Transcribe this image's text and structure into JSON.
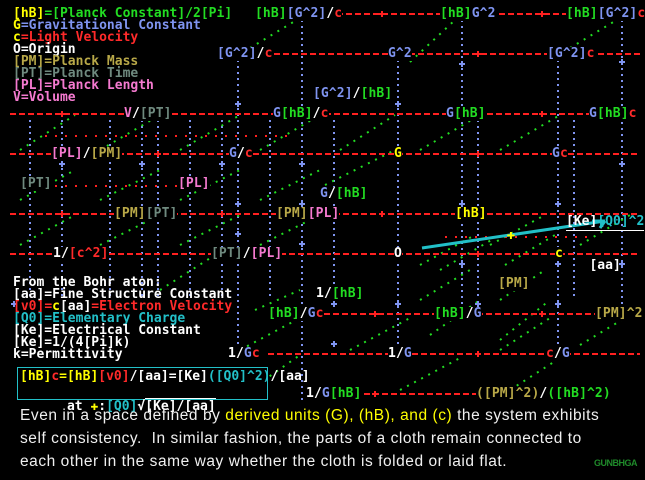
{
  "colors": {
    "hB": "#22dd22",
    "G": "#7f94f0",
    "c": "#ff2a2a",
    "O": "#ffffff",
    "PM": "#b8a848",
    "PT": "#6f8a7f",
    "PL": "#f57ad0",
    "V": "#f57ad0",
    "yellow": "#ffff00",
    "cyan": "#22c0c8",
    "white": "#ffffff",
    "grid_h": "#ff2020",
    "grid_v": "#7f94f0",
    "diag": "#22dd22"
  },
  "legend": [
    [
      [
        "[hB]",
        "#ffff00"
      ],
      [
        "=[Planck Constant]/2[Pi]",
        "#22dd22"
      ]
    ],
    [
      [
        "G",
        "#ffff00"
      ],
      [
        "=Gravitational Constant",
        "#7f94f0"
      ]
    ],
    [
      [
        "c",
        "#ffff00"
      ],
      [
        "=Light Velocity",
        "#ff2a2a"
      ]
    ],
    [
      [
        "O=Origin",
        "#ffffff"
      ]
    ],
    [
      [
        "[PM]=Planck Mass",
        "#b8a848"
      ]
    ],
    [
      [
        "[PT]=Planck Time",
        "#6f8a7f"
      ]
    ],
    [
      [
        "[PL]=Planck Length",
        "#f57ad0"
      ]
    ],
    [
      [
        "V=Volume",
        "#f57ad0"
      ]
    ]
  ],
  "nodes": [
    {
      "id": "hBG2_over_c",
      "segs": [
        [
          "[hB]",
          "#22dd22"
        ],
        [
          "[G^2]",
          "#7f94f0"
        ],
        [
          "/",
          "#ffffff"
        ],
        [
          "c",
          "#ff2a2a"
        ]
      ]
    },
    {
      "id": "hB_G2",
      "segs": [
        [
          "[hB]",
          "#22dd22"
        ],
        [
          "G^2",
          "#7f94f0"
        ]
      ]
    },
    {
      "id": "hBG2c",
      "segs": [
        [
          "[hB]",
          "#22dd22"
        ],
        [
          "[G^2]",
          "#7f94f0"
        ],
        [
          "c",
          "#ff2a2a"
        ]
      ]
    },
    {
      "id": "G2_over_c",
      "segs": [
        [
          "[G^2]",
          "#7f94f0"
        ],
        [
          "/",
          "#ffffff"
        ],
        [
          "c",
          "#ff2a2a"
        ]
      ]
    },
    {
      "id": "G2",
      "segs": [
        [
          "G^2",
          "#7f94f0"
        ]
      ]
    },
    {
      "id": "G2c",
      "segs": [
        [
          "[G^2]",
          "#7f94f0"
        ],
        [
          "c",
          "#ff2a2a"
        ]
      ]
    },
    {
      "id": "G2_over_hB",
      "segs": [
        [
          "[G^2]",
          "#7f94f0"
        ],
        [
          "/",
          "#ffffff"
        ],
        [
          "[hB]",
          "#22dd22"
        ]
      ]
    },
    {
      "id": "V_over_PT",
      "segs": [
        [
          "V",
          "#f57ad0"
        ],
        [
          "/",
          "#ffffff"
        ],
        [
          "[PT]",
          "#6f8a7f"
        ]
      ]
    },
    {
      "id": "GhB_over_c",
      "segs": [
        [
          "G",
          "#7f94f0"
        ],
        [
          "[hB]",
          "#22dd22"
        ],
        [
          "/",
          "#ffffff"
        ],
        [
          "c",
          "#ff2a2a"
        ]
      ]
    },
    {
      "id": "GhB",
      "segs": [
        [
          "G",
          "#7f94f0"
        ],
        [
          "[hB]",
          "#22dd22"
        ]
      ]
    },
    {
      "id": "GhBc",
      "segs": [
        [
          "G",
          "#7f94f0"
        ],
        [
          "[hB]",
          "#22dd22"
        ],
        [
          "c",
          "#ff2a2a"
        ]
      ]
    },
    {
      "id": "PL_over_PM",
      "segs": [
        [
          "[PL]",
          "#f57ad0"
        ],
        [
          "/",
          "#ffffff"
        ],
        [
          "[PM]",
          "#b8a848"
        ]
      ]
    },
    {
      "id": "G_over_c",
      "segs": [
        [
          "G",
          "#7f94f0"
        ],
        [
          "/",
          "#ffffff"
        ],
        [
          "c",
          "#ff2a2a"
        ]
      ]
    },
    {
      "id": "G",
      "segs": [
        [
          "G",
          "#ffff00"
        ]
      ]
    },
    {
      "id": "Gc",
      "segs": [
        [
          "G",
          "#7f94f0"
        ],
        [
          "c",
          "#ff2a2a"
        ]
      ]
    },
    {
      "id": "PT",
      "segs": [
        [
          "[PT]",
          "#6f8a7f"
        ]
      ]
    },
    {
      "id": "PL",
      "segs": [
        [
          "[PL]",
          "#f57ad0"
        ]
      ]
    },
    {
      "id": "G_over_hB",
      "segs": [
        [
          "G",
          "#7f94f0"
        ],
        [
          "/",
          "#ffffff"
        ],
        [
          "[hB]",
          "#22dd22"
        ]
      ]
    },
    {
      "id": "PMPT",
      "segs": [
        [
          "[PM]",
          "#b8a848"
        ],
        [
          "[PT]",
          "#6f8a7f"
        ]
      ]
    },
    {
      "id": "PMPL",
      "segs": [
        [
          "[PM]",
          "#b8a848"
        ],
        [
          "[PL]",
          "#f57ad0"
        ]
      ]
    },
    {
      "id": "hB",
      "segs": [
        [
          "[hB]",
          "#ffff00"
        ]
      ]
    },
    {
      "id": "one_over_c2",
      "segs": [
        [
          "1",
          "#ffffff"
        ],
        [
          "/",
          "#ffffff"
        ],
        [
          "[c^2]",
          "#ff2a2a"
        ]
      ]
    },
    {
      "id": "PT_over_PL",
      "segs": [
        [
          "[PT]",
          "#6f8a7f"
        ],
        [
          "/",
          "#ffffff"
        ],
        [
          "[PL]",
          "#f57ad0"
        ]
      ]
    },
    {
      "id": "O",
      "segs": [
        [
          "O",
          "#ffffff"
        ]
      ]
    },
    {
      "id": "c",
      "segs": [
        [
          "c",
          "#ffff00"
        ]
      ]
    },
    {
      "id": "one_over_hB",
      "segs": [
        [
          "1",
          "#ffffff"
        ],
        [
          "/",
          "#ffffff"
        ],
        [
          "[hB]",
          "#22dd22"
        ]
      ]
    },
    {
      "id": "PM",
      "segs": [
        [
          "[PM]",
          "#b8a848"
        ]
      ]
    },
    {
      "id": "hB_over_Gc",
      "segs": [
        [
          "[hB]",
          "#22dd22"
        ],
        [
          "/",
          "#ffffff"
        ],
        [
          "G",
          "#7f94f0"
        ],
        [
          "c",
          "#ff2a2a"
        ]
      ]
    },
    {
      "id": "hB_over_G",
      "segs": [
        [
          "[hB]",
          "#22dd22"
        ],
        [
          "/",
          "#ffffff"
        ],
        [
          "G",
          "#7f94f0"
        ]
      ]
    },
    {
      "id": "PM2",
      "segs": [
        [
          "[PM]^2",
          "#b8a848"
        ]
      ]
    },
    {
      "id": "one_over_Gc",
      "segs": [
        [
          "1",
          "#ffffff"
        ],
        [
          "/",
          "#ffffff"
        ],
        [
          "G",
          "#7f94f0"
        ],
        [
          "c",
          "#ff2a2a"
        ]
      ]
    },
    {
      "id": "one_over_G",
      "segs": [
        [
          "1",
          "#ffffff"
        ],
        [
          "/",
          "#ffffff"
        ],
        [
          "G",
          "#7f94f0"
        ]
      ]
    },
    {
      "id": "c_over_G",
      "segs": [
        [
          "c",
          "#ff2a2a"
        ],
        [
          "/",
          "#ffffff"
        ],
        [
          "G",
          "#7f94f0"
        ]
      ]
    },
    {
      "id": "one_over_GhB",
      "segs": [
        [
          "1",
          "#ffffff"
        ],
        [
          "/",
          "#ffffff"
        ],
        [
          "G",
          "#7f94f0"
        ],
        [
          "[hB]",
          "#22dd22"
        ]
      ]
    },
    {
      "id": "PM2_over_hB2",
      "segs": [
        [
          "([PM]^2)",
          "#b8a848"
        ],
        [
          "/",
          "#ffffff"
        ],
        [
          "([hB]^2)",
          "#22dd22"
        ]
      ]
    }
  ],
  "fraction": {
    "numerator": [
      [
        "[Ke]",
        "#ffffff"
      ],
      [
        "[Q0]^2",
        "#22c0c8"
      ]
    ],
    "denominator": "[aa]"
  },
  "bohr": [
    [
      [
        "From the Bohr aton:",
        "#ffffff"
      ]
    ],
    [
      [
        "[aa]=Fine Structure Constant",
        "#ffffff"
      ]
    ],
    [
      [
        "[v0]",
        "#ff2a2a"
      ],
      [
        "=",
        "#ff2a2a"
      ],
      [
        "c",
        "#ffff00"
      ],
      [
        "[aa]",
        "#ffffff"
      ],
      [
        "=Electron Velocity",
        "#ff2a2a"
      ]
    ],
    [
      [
        "[Q0]=Elementary Charge",
        "#22c0c8"
      ]
    ],
    [
      [
        "[Ke]=Electrical Constant",
        "#ffffff"
      ]
    ],
    [
      [
        "[Ke]=1/(4[Pi]k)",
        "#ffffff"
      ]
    ],
    [
      [
        "k=Permittivity",
        "#ffffff"
      ]
    ]
  ],
  "formula": {
    "line1": [
      [
        "[hB]",
        "#ffff00"
      ],
      [
        "c",
        "#ff2a2a"
      ],
      [
        "=",
        "#ffff00"
      ],
      [
        "[hB]",
        "#ffff00"
      ],
      [
        "[v0]",
        "#ff2a2a"
      ],
      [
        "/[aa]=[Ke]",
        "#ffffff"
      ],
      [
        "([Q0]^2)",
        "#22c0c8"
      ],
      [
        "/[aa]",
        "#ffffff"
      ]
    ],
    "line2_prefix": "at ",
    "line2_marker": "✚",
    "line2_colon": ":",
    "line2_charge": "[Q0]",
    "line2_radical": "√",
    "line2_radicand": "[Ke]/[aa]"
  },
  "caption": [
    [
      [
        "Even in a space defined by ",
        "#f0f0f0"
      ],
      [
        "derived units (G), (hB), and (c)",
        "#ffff00"
      ],
      [
        " the system exhibits",
        "#f0f0f0"
      ]
    ],
    [
      [
        "self consistency.  In similar fashion, the parts of a cloth remain connected to",
        "#f0f0f0"
      ]
    ],
    [
      [
        "each other in the same way whether the cloth is folded or laid flat.",
        "#f0f0f0"
      ]
    ]
  ],
  "logo": "GUNBHGA"
}
